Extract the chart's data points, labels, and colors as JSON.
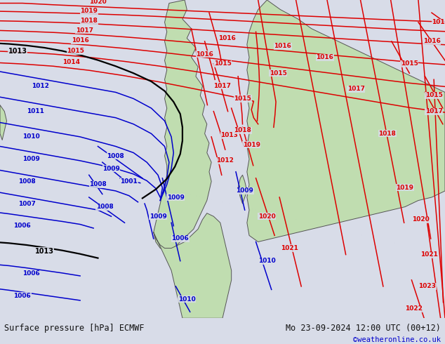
{
  "title_left": "Surface pressure [hPa] ECMWF",
  "title_right": "Mo 23-09-2024 12:00 UTC (00+12)",
  "credit": "©weatheronline.co.uk",
  "bg_color": "#d8dce8",
  "land_color": "#c0ddb0",
  "sea_color": "#d8dce8",
  "font_color_label": "#222222",
  "red_line_color": "#dd0000",
  "blue_line_color": "#0000cc",
  "black_line_color": "#000000",
  "coast_color": "#555555",
  "bottom_bar_color": "#c0c0c0",
  "bottom_text_color": "#111111",
  "credit_color": "#0000cc",
  "figsize": [
    6.34,
    4.9
  ],
  "dpi": 100
}
